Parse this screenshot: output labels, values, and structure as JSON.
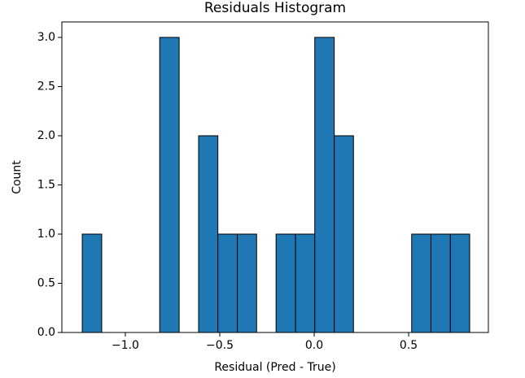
{
  "chart_data": {
    "type": "histogram",
    "title": "Residuals Histogram",
    "x_label": "Residual (Pred - True)",
    "y_label": "Count",
    "bins": [
      -1.228,
      -1.125,
      -1.023,
      -0.92,
      -0.818,
      -0.715,
      -0.612,
      -0.51,
      -0.407,
      -0.305,
      -0.202,
      -0.099,
      0.003,
      0.106,
      0.208,
      0.311,
      0.413,
      0.516,
      0.618,
      0.721,
      0.823
    ],
    "counts": [
      1,
      0,
      0,
      0,
      3,
      0,
      2,
      1,
      1,
      0,
      1,
      1,
      3,
      2,
      0,
      0,
      0,
      1,
      1,
      1
    ],
    "color": "#1f77b4",
    "edgecolor": "#000000",
    "xlim": [
      -1.336,
      0.922
    ],
    "xticks": [
      {
        "value": -1.0,
        "label": "−1.0"
      },
      {
        "value": -0.5,
        "label": "−0.5"
      },
      {
        "value": 0.0,
        "label": "0.0"
      },
      {
        "value": 0.5,
        "label": "0.5"
      }
    ],
    "ylim": [
      0,
      3.157
    ],
    "yticks": [
      {
        "value": 0,
        "label": "0.0"
      },
      {
        "value": 0.5,
        "label": "0.5"
      },
      {
        "value": 1.0,
        "label": "1.0"
      },
      {
        "value": 1.5,
        "label": "1.5"
      },
      {
        "value": 2.0,
        "label": "2.0"
      },
      {
        "value": 2.5,
        "label": "2.5"
      },
      {
        "value": 3.0,
        "label": "3.0"
      }
    ]
  }
}
